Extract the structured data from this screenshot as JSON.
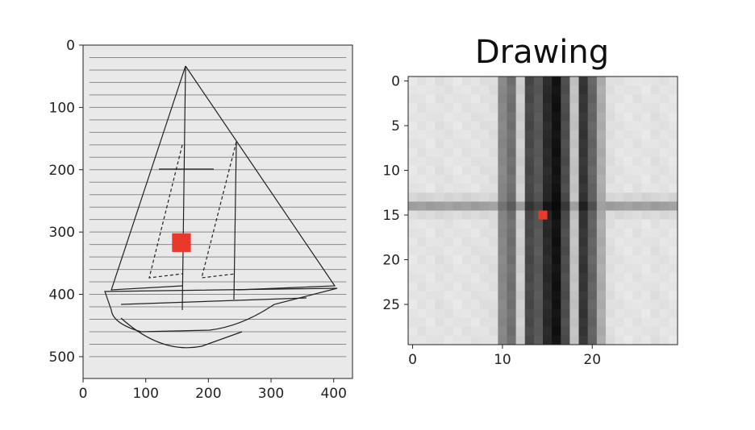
{
  "chart_data": [
    {
      "type": "image",
      "description_free": true,
      "title": "",
      "xlim": [
        0,
        430
      ],
      "ylim": [
        535,
        0
      ],
      "xticks": [
        0,
        100,
        200,
        300,
        400
      ],
      "yticks": [
        0,
        100,
        200,
        300,
        400,
        500
      ],
      "xtick_labels": [
        "0",
        "100",
        "200",
        "300",
        "400"
      ],
      "ytick_labels": [
        "0",
        "100",
        "200",
        "300",
        "400",
        "500"
      ],
      "highlight": {
        "x": [
          142,
          172
        ],
        "y": [
          302,
          332
        ],
        "color": "#e8392b"
      },
      "hlines_y": [
        20,
        40,
        60,
        80,
        100,
        120,
        140,
        160,
        180,
        200,
        220,
        240,
        260,
        280,
        300,
        320,
        340,
        360,
        380,
        400,
        420,
        440,
        460,
        480,
        500
      ]
    },
    {
      "type": "heatmap",
      "title": "Drawing",
      "xlim": [
        -0.5,
        29.5
      ],
      "ylim": [
        29.5,
        -0.5
      ],
      "xticks": [
        0,
        10,
        20
      ],
      "yticks": [
        0,
        5,
        10,
        15,
        20,
        25
      ],
      "xtick_labels": [
        "0",
        "10",
        "20"
      ],
      "ytick_labels": [
        "0",
        "5",
        "10",
        "15",
        "20",
        "25"
      ],
      "column_darkness": [
        0.05,
        0.06,
        0.05,
        0.07,
        0.06,
        0.05,
        0.06,
        0.06,
        0.07,
        0.08,
        0.45,
        0.55,
        0.15,
        0.72,
        0.65,
        0.85,
        0.95,
        0.7,
        0.2,
        0.8,
        0.6,
        0.3,
        0.08,
        0.06,
        0.05,
        0.06,
        0.05,
        0.07,
        0.06,
        0.05
      ],
      "row_darkness": [
        0,
        0,
        0,
        0,
        0,
        0,
        0,
        0,
        0,
        0,
        0,
        0,
        0,
        0.12,
        0.35,
        0.1,
        0,
        0,
        0,
        0,
        0,
        0,
        0,
        0,
        0,
        0,
        0,
        0,
        0,
        0
      ],
      "highlight": {
        "row": 15,
        "col": 15,
        "color": "#e8392b"
      }
    }
  ]
}
